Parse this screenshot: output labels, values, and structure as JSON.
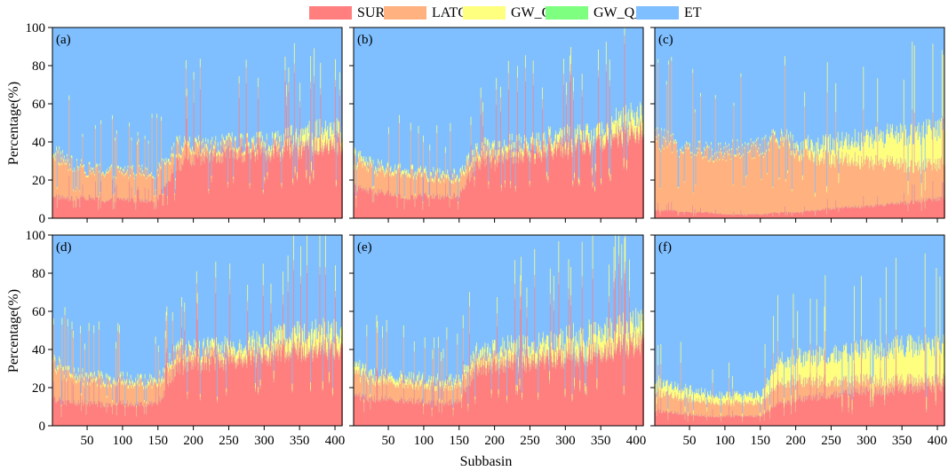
{
  "chart_data": {
    "type": "area",
    "layout": "2x3 panels",
    "xlabel": "Subbasin",
    "ylabel": "Percentage(%)",
    "xlim": [
      1,
      410
    ],
    "ylim": [
      0,
      100
    ],
    "xticks": [
      50,
      100,
      150,
      200,
      250,
      300,
      350,
      400
    ],
    "yticks": [
      0,
      20,
      40,
      60,
      80,
      100
    ],
    "legend": {
      "placement": "top-center",
      "entries": [
        {
          "name": "SURQ",
          "color": "#ff7f7f"
        },
        {
          "name": "LATQ",
          "color": "#ffb27f"
        },
        {
          "name": "GW_Q",
          "color": "#ffff7f"
        },
        {
          "name": "GW_Q_D",
          "color": "#7fff7f"
        },
        {
          "name": "ET",
          "color": "#7fbfff"
        }
      ]
    },
    "panels": [
      {
        "label": "(a)",
        "x": [
          1,
          25,
          50,
          75,
          100,
          125,
          150,
          175,
          200,
          225,
          250,
          275,
          300,
          325,
          350,
          375,
          400,
          410
        ],
        "series": {
          "SURQ": [
            12,
            10,
            11,
            9,
            10,
            9,
            10,
            28,
            30,
            32,
            33,
            34,
            34,
            35,
            36,
            37,
            38,
            38
          ],
          "LATQ": [
            22,
            18,
            14,
            15,
            14,
            15,
            14,
            8,
            6,
            4,
            4,
            4,
            3,
            3,
            2,
            2,
            2,
            2
          ],
          "GW_Q": [
            2,
            1,
            1,
            1,
            1,
            1,
            1,
            2,
            2,
            2,
            2,
            2,
            3,
            3,
            6,
            8,
            6,
            5
          ],
          "GW_Q_D": [
            0,
            0,
            0,
            0,
            0,
            0,
            0,
            0,
            0,
            0,
            0,
            0,
            0,
            0,
            0,
            0,
            0,
            0
          ]
        }
      },
      {
        "label": "(b)",
        "x": [
          1,
          25,
          50,
          75,
          100,
          125,
          150,
          175,
          200,
          225,
          250,
          275,
          300,
          325,
          350,
          375,
          400,
          410
        ],
        "series": {
          "SURQ": [
            16,
            14,
            13,
            10,
            12,
            11,
            12,
            30,
            29,
            32,
            33,
            35,
            36,
            37,
            40,
            42,
            44,
            44
          ],
          "LATQ": [
            14,
            12,
            11,
            13,
            10,
            10,
            9,
            5,
            4,
            4,
            3,
            3,
            3,
            2,
            2,
            2,
            2,
            2
          ],
          "GW_Q": [
            3,
            2,
            2,
            2,
            2,
            2,
            2,
            3,
            3,
            3,
            3,
            4,
            4,
            5,
            6,
            7,
            8,
            8
          ],
          "GW_Q_D": [
            0,
            0,
            0,
            0,
            0,
            0,
            0,
            0,
            0,
            0,
            0,
            0,
            0,
            0,
            0,
            0,
            0,
            0
          ]
        }
      },
      {
        "label": "(c)",
        "x": [
          1,
          25,
          50,
          75,
          100,
          125,
          150,
          175,
          200,
          225,
          250,
          275,
          300,
          325,
          350,
          375,
          400,
          410
        ],
        "series": {
          "SURQ": [
            4,
            4,
            3,
            3,
            2,
            2,
            2,
            3,
            3,
            4,
            5,
            6,
            6,
            7,
            8,
            9,
            10,
            10
          ],
          "LATQ": [
            38,
            34,
            32,
            31,
            33,
            34,
            34,
            38,
            32,
            28,
            26,
            25,
            23,
            22,
            20,
            18,
            18,
            18
          ],
          "GW_Q": [
            1,
            1,
            1,
            1,
            1,
            1,
            1,
            2,
            3,
            6,
            8,
            10,
            12,
            14,
            16,
            18,
            18,
            18
          ],
          "GW_Q_D": [
            0,
            0,
            0,
            0,
            0,
            0,
            0,
            0,
            0,
            0,
            0,
            0,
            0,
            0,
            0,
            0,
            0,
            0
          ]
        }
      },
      {
        "label": "(d)",
        "x": [
          1,
          25,
          50,
          75,
          100,
          125,
          150,
          175,
          200,
          225,
          250,
          275,
          300,
          325,
          350,
          375,
          400,
          410
        ],
        "series": {
          "SURQ": [
            14,
            12,
            12,
            11,
            12,
            11,
            12,
            30,
            32,
            33,
            34,
            35,
            36,
            37,
            38,
            39,
            40,
            40
          ],
          "LATQ": [
            18,
            14,
            12,
            12,
            11,
            11,
            10,
            7,
            5,
            4,
            4,
            3,
            3,
            3,
            2,
            2,
            2,
            2
          ],
          "GW_Q": [
            2,
            2,
            2,
            2,
            2,
            2,
            2,
            3,
            3,
            4,
            4,
            5,
            6,
            7,
            8,
            9,
            8,
            8
          ],
          "GW_Q_D": [
            0,
            0,
            0,
            0,
            0,
            0,
            0,
            0,
            0,
            0,
            0,
            0,
            0,
            0,
            0,
            0,
            0,
            0
          ]
        }
      },
      {
        "label": "(e)",
        "x": [
          1,
          25,
          50,
          75,
          100,
          125,
          150,
          175,
          200,
          225,
          250,
          275,
          300,
          325,
          350,
          375,
          400,
          410
        ],
        "series": {
          "SURQ": [
            16,
            14,
            14,
            13,
            13,
            12,
            13,
            30,
            31,
            32,
            33,
            34,
            35,
            36,
            38,
            40,
            42,
            42
          ],
          "LATQ": [
            12,
            10,
            9,
            9,
            9,
            9,
            9,
            5,
            4,
            4,
            3,
            3,
            3,
            3,
            2,
            2,
            2,
            2
          ],
          "GW_Q": [
            4,
            3,
            3,
            3,
            3,
            3,
            3,
            4,
            5,
            6,
            6,
            7,
            8,
            9,
            10,
            10,
            10,
            10
          ],
          "GW_Q_D": [
            0,
            0,
            0,
            0,
            0,
            0,
            0,
            0,
            0,
            0,
            0,
            0,
            0,
            0,
            0,
            0,
            0,
            0
          ]
        }
      },
      {
        "label": "(f)",
        "x": [
          1,
          25,
          50,
          75,
          100,
          125,
          150,
          175,
          200,
          225,
          250,
          275,
          300,
          325,
          350,
          375,
          400,
          410
        ],
        "series": {
          "SURQ": [
            8,
            7,
            6,
            5,
            5,
            5,
            5,
            12,
            14,
            15,
            16,
            17,
            18,
            18,
            19,
            20,
            20,
            20
          ],
          "LATQ": [
            10,
            9,
            8,
            8,
            7,
            7,
            7,
            10,
            10,
            8,
            7,
            6,
            6,
            5,
            5,
            4,
            4,
            4
          ],
          "GW_Q": [
            6,
            5,
            5,
            4,
            4,
            4,
            4,
            12,
            12,
            13,
            14,
            15,
            16,
            17,
            18,
            18,
            18,
            18
          ],
          "GW_Q_D": [
            0,
            0,
            0,
            0,
            0,
            0,
            0,
            0,
            0,
            0,
            0,
            0,
            0,
            0,
            0,
            0,
            0,
            0
          ]
        }
      }
    ]
  }
}
